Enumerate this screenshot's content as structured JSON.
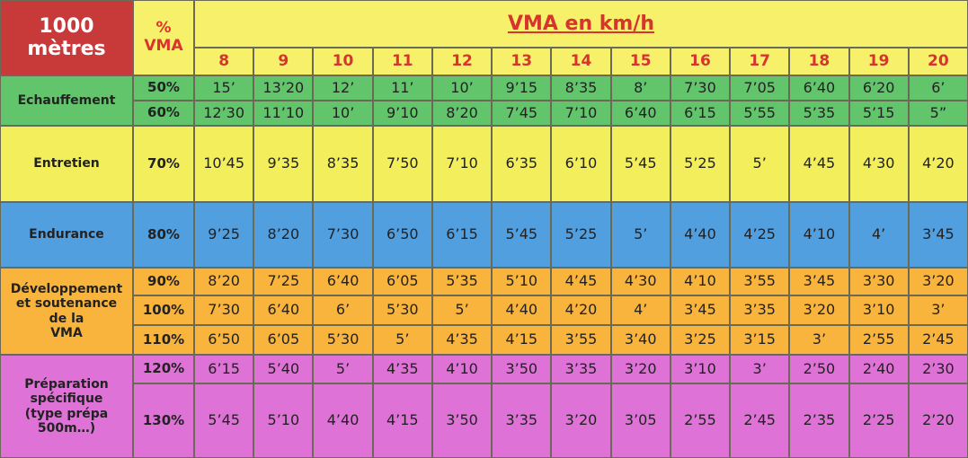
{
  "header": {
    "title_lines": [
      "1000",
      "mètres"
    ],
    "pct_lines": [
      "%",
      "VMA"
    ],
    "vma_title": "VMA en km/h",
    "speeds": [
      8,
      9,
      10,
      11,
      12,
      13,
      14,
      15,
      16,
      17,
      18,
      19,
      20
    ]
  },
  "groups": [
    {
      "label_lines": [
        "Echauffement"
      ],
      "color": "#62c56b",
      "rows": [
        {
          "pct": "50%",
          "times": [
            "15’",
            "13’20",
            "12’",
            "11’",
            "10’",
            "9’15",
            "8’35",
            "8’",
            "7’30",
            "7’05",
            "6’40",
            "6’20",
            "6’"
          ]
        },
        {
          "pct": "60%",
          "times": [
            "12’30",
            "11’10",
            "10’",
            "9’10",
            "8’20",
            "7’45",
            "7’10",
            "6’40",
            "6’15",
            "5’55",
            "5’35",
            "5’15",
            "5”"
          ]
        }
      ]
    },
    {
      "label_lines": [
        "Entretien"
      ],
      "color": "#f3ee5c",
      "rows": [
        {
          "pct": "70%",
          "times": [
            "10’45",
            "9’35",
            "8’35",
            "7’50",
            "7’10",
            "6’35",
            "6’10",
            "5’45",
            "5’25",
            "5’",
            "4’45",
            "4’30",
            "4’20"
          ]
        }
      ]
    },
    {
      "label_lines": [
        "Endurance"
      ],
      "color": "#529fe0",
      "rows": [
        {
          "pct": "80%",
          "times": [
            "9’25",
            "8’20",
            "7’30",
            "6’50",
            "6’15",
            "5’45",
            "5’25",
            "5’",
            "4’40",
            "4’25",
            "4’10",
            "4’",
            "3’45"
          ]
        }
      ]
    },
    {
      "label_lines": [
        "Développement",
        "et soutenance",
        "de la",
        "VMA"
      ],
      "color": "#f8b43c",
      "rows": [
        {
          "pct": "90%",
          "times": [
            "8’20",
            "7’25",
            "6’40",
            "6’05",
            "5’35",
            "5’10",
            "4’45",
            "4’30",
            "4’10",
            "3’55",
            "3’45",
            "3’30",
            "3’20"
          ]
        },
        {
          "pct": "100%",
          "times": [
            "7’30",
            "6’40",
            "6’",
            "5’30",
            "5’",
            "4’40",
            "4’20",
            "4’",
            "3’45",
            "3’35",
            "3’20",
            "3’10",
            "3’"
          ]
        },
        {
          "pct": "110%",
          "times": [
            "6’50",
            "6’05",
            "5’30",
            "5’",
            "4’35",
            "4’15",
            "3’55",
            "3’40",
            "3’25",
            "3’15",
            "3’",
            "2’55",
            "2’45"
          ]
        }
      ]
    },
    {
      "label_lines": [
        "Préparation",
        "spécifique",
        "(type prépa",
        "500m…)"
      ],
      "color": "#de72d6",
      "rows": [
        {
          "pct": "120%",
          "times": [
            "6’15",
            "5’40",
            "5’",
            "4’35",
            "4’10",
            "3’50",
            "3’35",
            "3’20",
            "3’10",
            "3’",
            "2’50",
            "2’40",
            "2’30"
          ]
        },
        {
          "pct": "130%",
          "times": [
            "5’45",
            "5’10",
            "4’40",
            "4’15",
            "3’50",
            "3’35",
            "3’20",
            "3’05",
            "2’55",
            "2’45",
            "2’35",
            "2’25",
            "2’20"
          ]
        }
      ]
    }
  ]
}
